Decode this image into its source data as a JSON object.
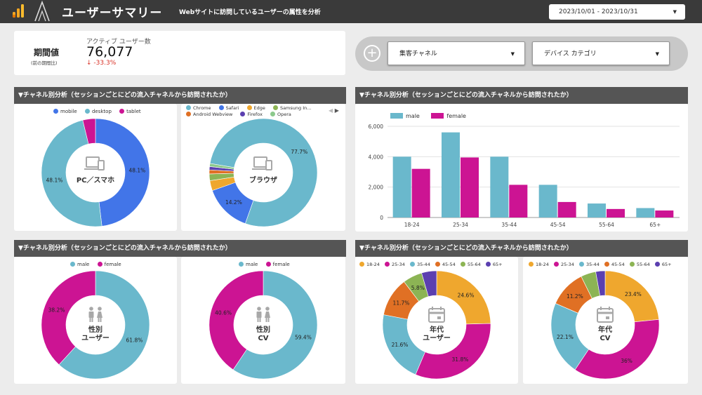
{
  "header": {
    "title": "ユーザーサマリー",
    "subtitle": "Webサイトに訪問しているユーザーの属性を分析",
    "date_range": "2023/10/01 - 2023/10/31"
  },
  "kpi": {
    "label": "期間値",
    "label_sub": "(前の期間比)",
    "metric_name": "アクティブ ユーザー数",
    "value": "76,077",
    "delta": "↓ -33.3%"
  },
  "filters": {
    "channel": "集客チャネル",
    "device": "デバイス カテゴリ"
  },
  "section_title": "▼チャネル別分析（セッションごとにどの流入チャネルから訪問されたか）",
  "colors": {
    "mobile": "#4275e8",
    "desktop": "#6ab8cc",
    "tablet": "#cc1493",
    "chrome": "#6ab8cc",
    "safari": "#4275e8",
    "edge": "#efa72e",
    "samsung": "#8cb454",
    "android": "#e07024",
    "firefox": "#5b3fb0",
    "opera": "#8cc98c",
    "male": "#6ab8cc",
    "female": "#cc1493",
    "age_18_24": "#efa72e",
    "age_25_34": "#cc1493",
    "age_35_44": "#6ab8cc",
    "age_45_54": "#e07024",
    "age_55_64": "#8cb454",
    "age_65": "#5b3fb0"
  },
  "icons": {
    "device": "devices-icon",
    "gender": "people-icon",
    "age": "calendar-icon"
  },
  "chart_data": [
    {
      "type": "pie",
      "center_label": "PC／スマホ",
      "legend": [
        "mobile",
        "desktop",
        "tablet"
      ],
      "categories": [
        "mobile",
        "desktop",
        "tablet"
      ],
      "values": [
        48.1,
        48.1,
        3.8
      ],
      "labels": [
        "48.1%",
        "48.1%",
        ""
      ]
    },
    {
      "type": "pie",
      "center_label": "ブラウザ",
      "legend": [
        "Chrome",
        "Safari",
        "Edge",
        "Samsung In...",
        "Android Webview",
        "Firefox",
        "Opera"
      ],
      "categories": [
        "Chrome",
        "Safari",
        "Edge",
        "Samsung Internet",
        "Android Webview",
        "Firefox",
        "Opera"
      ],
      "values": [
        77.7,
        14.2,
        3.0,
        2.0,
        1.2,
        1.0,
        0.9
      ],
      "labels": [
        "77.7%",
        "14.2%",
        "",
        "",
        "",
        "",
        ""
      ]
    },
    {
      "type": "bar",
      "categories": [
        "18-24",
        "25-34",
        "35-44",
        "45-54",
        "55-64",
        "65+"
      ],
      "series": [
        {
          "name": "male",
          "values": [
            4000,
            5600,
            4000,
            2150,
            920,
            620
          ]
        },
        {
          "name": "female",
          "values": [
            3200,
            3950,
            2150,
            1020,
            560,
            460
          ]
        }
      ],
      "ylim": [
        0,
        6000
      ],
      "yticks": [
        "0",
        "2,000",
        "4,000",
        "6,000"
      ],
      "grid": true,
      "legend_position": "top-left"
    },
    {
      "type": "pie",
      "center_label": [
        "性別",
        "ユーザー"
      ],
      "legend": [
        "male",
        "female"
      ],
      "categories": [
        "male",
        "female"
      ],
      "values": [
        61.8,
        38.2
      ],
      "labels": [
        "61.8%",
        "38.2%"
      ]
    },
    {
      "type": "pie",
      "center_label": [
        "性別",
        "CV"
      ],
      "legend": [
        "male",
        "female"
      ],
      "categories": [
        "male",
        "female"
      ],
      "values": [
        59.4,
        40.6
      ],
      "labels": [
        "59.4%",
        "40.6%"
      ]
    },
    {
      "type": "pie",
      "center_label": [
        "年代",
        "ユーザー"
      ],
      "legend": [
        "18-24",
        "25-34",
        "35-44",
        "45-54",
        "55-64",
        "65+"
      ],
      "categories": [
        "18-24",
        "25-34",
        "35-44",
        "45-54",
        "55-64",
        "65+"
      ],
      "values": [
        24.6,
        31.8,
        21.6,
        11.7,
        5.8,
        4.5
      ],
      "labels": [
        "24.6%",
        "31.8%",
        "21.6%",
        "11.7%",
        "5.8%",
        ""
      ]
    },
    {
      "type": "pie",
      "center_label": [
        "年代",
        "CV"
      ],
      "legend": [
        "18-24",
        "25-34",
        "35-44",
        "45-54",
        "55-64",
        "65+"
      ],
      "categories": [
        "18-24",
        "25-34",
        "35-44",
        "45-54",
        "55-64",
        "65+"
      ],
      "values": [
        23.4,
        36,
        22.1,
        11.2,
        4.5,
        2.8
      ],
      "labels": [
        "23.4%",
        "36%",
        "22.1%",
        "11.2%",
        "",
        ""
      ]
    }
  ]
}
